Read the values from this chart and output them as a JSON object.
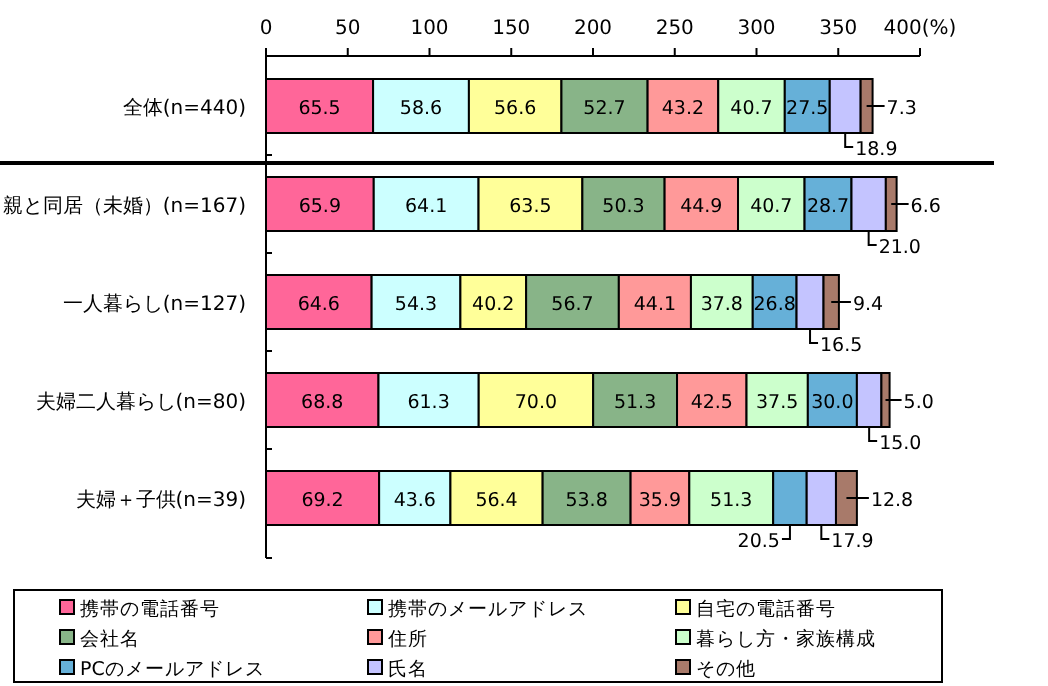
{
  "chart_data": {
    "type": "bar",
    "orientation": "horizontal",
    "stacked": true,
    "legend": "bottom",
    "grid": false,
    "categories": [
      "全体(n=440)",
      "親と同居（未婚）(n=167)",
      "一人暮らし(n=127)",
      "夫婦二人暮らし(n=80)",
      "夫婦＋子供(n=39)"
    ],
    "xlim": [
      0,
      400
    ],
    "xticks": [
      0,
      50,
      100,
      150,
      200,
      250,
      300,
      350,
      {
        "value": 400,
        "label": "400(%)"
      }
    ],
    "series": [
      {
        "name": "携帯の電話番号",
        "color": "#ff6699",
        "values": [
          65.5,
          65.9,
          64.6,
          68.8,
          69.2
        ],
        "value_labels": [
          "65.5",
          "65.9",
          "64.6",
          "68.8",
          "69.2"
        ]
      },
      {
        "name": "携帯のメールアドレス",
        "color": "#ccffff",
        "values": [
          58.6,
          64.1,
          54.3,
          61.3,
          43.6
        ],
        "value_labels": [
          "58.6",
          "64.1",
          "54.3",
          "61.3",
          "43.6"
        ]
      },
      {
        "name": "自宅の電話番号",
        "color": "#ffff99",
        "values": [
          56.6,
          63.5,
          40.2,
          70.0,
          56.4
        ],
        "value_labels": [
          "56.6",
          "63.5",
          "40.2",
          "70.0",
          "56.4"
        ]
      },
      {
        "name": "会社名",
        "color": "#88b488",
        "values": [
          52.7,
          50.3,
          56.7,
          51.3,
          53.8
        ],
        "value_labels": [
          "52.7",
          "50.3",
          "56.7",
          "51.3",
          "53.8"
        ]
      },
      {
        "name": "住所",
        "color": "#ff9999",
        "values": [
          43.2,
          44.9,
          44.1,
          42.5,
          35.9
        ],
        "value_labels": [
          "43.2",
          "44.9",
          "44.1",
          "42.5",
          "35.9"
        ]
      },
      {
        "name": "暮らし方・家族構成",
        "color": "#ccffcc",
        "values": [
          40.7,
          40.7,
          37.8,
          37.5,
          51.3
        ],
        "value_labels": [
          "40.7",
          "40.7",
          "37.8",
          "37.5",
          "51.3"
        ]
      },
      {
        "name": "PCのメールアドレス",
        "color": "#66b0d8",
        "values": [
          27.5,
          28.7,
          26.8,
          30.0,
          20.5
        ],
        "value_labels": [
          "27.5",
          "28.7",
          "26.8",
          "30.0",
          "20.5"
        ]
      },
      {
        "name": "氏名",
        "color": "#c4c4ff",
        "values": [
          18.9,
          21.0,
          16.5,
          15.0,
          17.9
        ],
        "value_labels": [
          "18.9",
          "21.0",
          "16.5",
          "15.0",
          "17.9"
        ]
      },
      {
        "name": "その他",
        "color": "#a87a6a",
        "values": [
          7.3,
          6.6,
          9.4,
          5.0,
          12.8
        ],
        "value_labels": [
          "7.3",
          "6.6",
          "9.4",
          "5.0",
          "12.8"
        ]
      }
    ]
  }
}
